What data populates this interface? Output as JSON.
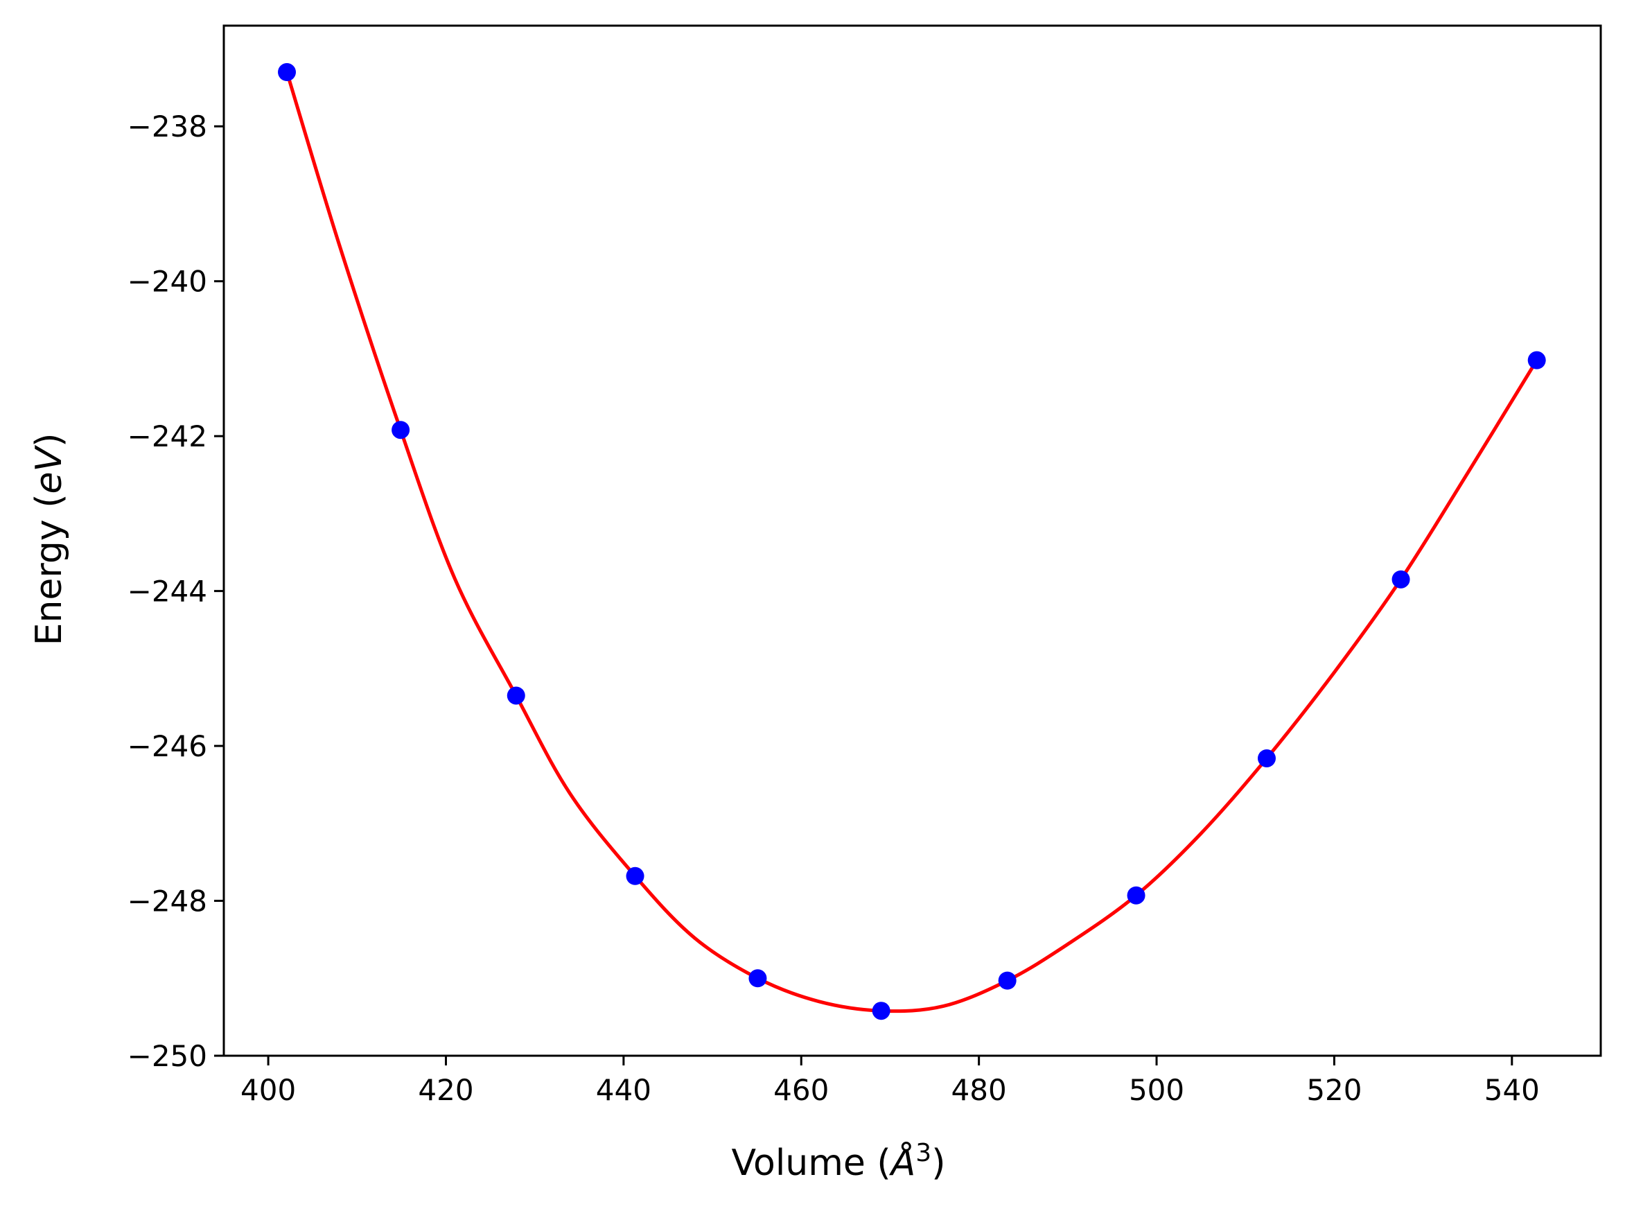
{
  "chart_data": {
    "type": "scatter",
    "xlabel": "Volume",
    "xlabel_unit": "Å",
    "xlabel_unit_power": "3",
    "ylabel": "Energy",
    "ylabel_unit": "eV",
    "xlim": [
      395,
      550
    ],
    "ylim": [
      -250,
      -236.7
    ],
    "x_ticks": [
      400,
      420,
      440,
      460,
      480,
      500,
      520,
      540
    ],
    "y_ticks": [
      -238,
      -240,
      -242,
      -244,
      -246,
      -248,
      -250
    ],
    "x_tick_labels": [
      "400",
      "420",
      "440",
      "460",
      "480",
      "500",
      "520",
      "540"
    ],
    "y_tick_labels": [
      "−238",
      "−240",
      "−242",
      "−244",
      "−246",
      "−248",
      "−250"
    ],
    "grid": false,
    "legend": "none",
    "series": [
      {
        "kind": "points",
        "color": "#0000ff",
        "x": [
          402.1,
          414.9,
          427.9,
          441.3,
          455.1,
          469.0,
          483.2,
          497.7,
          512.4,
          527.5,
          542.8
        ],
        "y": [
          -237.3,
          -241.92,
          -245.35,
          -247.68,
          -249.0,
          -249.42,
          -249.03,
          -247.93,
          -246.16,
          -243.85,
          -241.02
        ]
      },
      {
        "kind": "fit-curve",
        "color": "#ff0000",
        "x": [
          402.1,
          408,
          414.9,
          421,
          427.9,
          434,
          441.3,
          448,
          455.1,
          462,
          469.0,
          476,
          483.2,
          490,
          497.7,
          505,
          512.4,
          520,
          527.5,
          535,
          542.8
        ],
        "y": [
          -237.3,
          -239.53,
          -241.92,
          -243.84,
          -245.35,
          -246.62,
          -247.68,
          -248.48,
          -249.0,
          -249.3,
          -249.42,
          -249.36,
          -249.03,
          -248.56,
          -247.93,
          -247.13,
          -246.16,
          -245.05,
          -243.85,
          -242.48,
          -241.02
        ]
      }
    ]
  }
}
